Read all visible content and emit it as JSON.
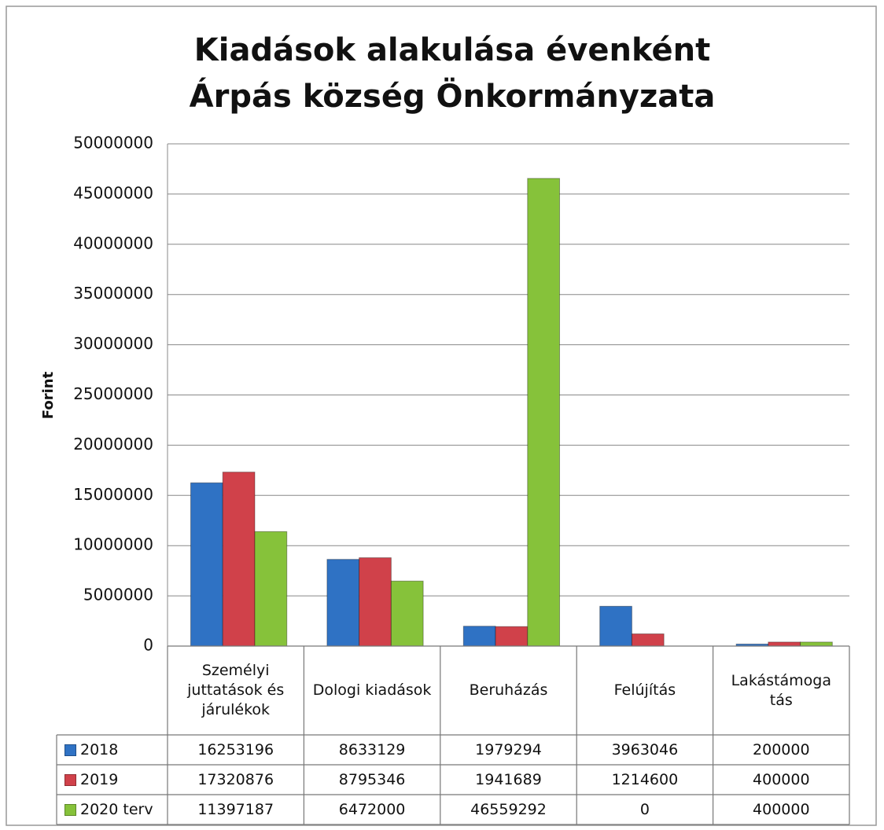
{
  "chart_data": {
    "type": "bar",
    "title": "Kiadások alakulása évenként",
    "subtitle": "Árpás község Önkormányzata",
    "y_label": "Forint",
    "categories": [
      "Személyi juttatások és járulékok",
      "Dologi kiadások",
      "Beruházás",
      "Felújítás",
      "Lakástámoga tás"
    ],
    "series": [
      {
        "name": "2018",
        "color": "#2f72c4",
        "values": [
          16253196,
          8633129,
          1979294,
          3963046,
          200000
        ]
      },
      {
        "name": "2019",
        "color": "#d0414a",
        "values": [
          17320876,
          8795346,
          1941689,
          1214600,
          400000
        ]
      },
      {
        "name": "2020 terv",
        "color": "#86c23a",
        "values": [
          11397187,
          6472000,
          46559292,
          0,
          400000
        ]
      }
    ],
    "ylim": [
      0,
      50000000
    ],
    "yticks": [
      0,
      5000000,
      10000000,
      15000000,
      20000000,
      25000000,
      30000000,
      35000000,
      40000000,
      45000000,
      50000000
    ],
    "grid": true
  }
}
